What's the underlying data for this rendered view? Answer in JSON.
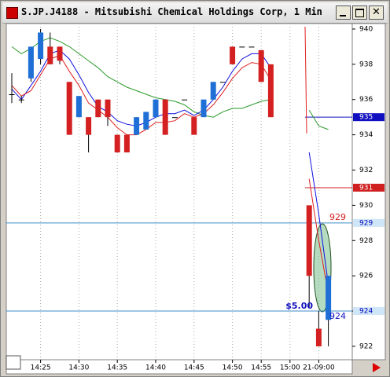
{
  "chart_data": {
    "type": "candlestick",
    "title": "S.JP.J4188 - Mitsubishi Chemical Holdings Corp, 1 Min",
    "categories": [
      null,
      null,
      null,
      "14:25",
      null,
      null,
      null,
      "14:30",
      null,
      null,
      null,
      "14:35",
      null,
      null,
      null,
      "14:40",
      null,
      null,
      null,
      "14:45",
      null,
      null,
      null,
      "14:50",
      null,
      null,
      "14:55",
      null,
      null,
      "15:00",
      null,
      null,
      "21-09:00",
      null
    ],
    "open": [
      936.3,
      936,
      937.2,
      938.3,
      939,
      939,
      937,
      935,
      935,
      936,
      936,
      934,
      934,
      934,
      934.3,
      935,
      936,
      935,
      936,
      935,
      935,
      936,
      937,
      939,
      939,
      939,
      938.8,
      938,
      null,
      null,
      null,
      930,
      923,
      923.5
    ],
    "high": [
      937.5,
      936.2,
      939,
      940,
      939.8,
      939,
      937,
      936.2,
      935,
      936,
      936,
      934,
      934,
      935,
      935.3,
      936,
      936,
      935,
      936,
      935,
      936,
      937,
      937,
      939,
      939,
      939,
      938.8,
      938,
      null,
      null,
      null,
      930,
      924,
      926
    ],
    "low": [
      935.8,
      935.8,
      937,
      938,
      938,
      938,
      934,
      935,
      933,
      935,
      934.5,
      933,
      933,
      934,
      934.3,
      935,
      934,
      935,
      936,
      934,
      935,
      936,
      937,
      938,
      939,
      939,
      937,
      935,
      null,
      null,
      null,
      924.2,
      922,
      922
    ],
    "close": [
      936.3,
      936,
      939,
      939.8,
      938,
      938.2,
      934,
      936.2,
      934,
      935,
      935,
      933,
      933,
      935,
      935.3,
      936,
      934,
      935,
      936,
      934,
      936,
      937,
      937,
      938,
      939,
      939,
      937,
      935,
      null,
      null,
      null,
      926,
      922,
      926
    ],
    "up_color": "#1f6fd6",
    "down_color": "#d42020",
    "moving_averages": [
      {
        "color": "#2a9a2a",
        "values": [
          939,
          938.6,
          938.9,
          939.3,
          939.5,
          939.3,
          939,
          938.6,
          938.2,
          937.8,
          937.3,
          937,
          936.7,
          936.5,
          936.3,
          936.1,
          936,
          935.9,
          935.7,
          935.3,
          935.1,
          935,
          935.3,
          935.5,
          935.5,
          935.7,
          935.9,
          936,
          null,
          null,
          null,
          935.4,
          934.5,
          934.3
        ]
      },
      {
        "color": "#1010e0",
        "values": [
          936.6,
          936,
          936.8,
          937.6,
          938.6,
          938.8,
          938.3,
          937.4,
          936.4,
          935.6,
          935.3,
          934.8,
          934.6,
          934.5,
          934.7,
          935,
          935.2,
          935.2,
          935.4,
          935.1,
          935.4,
          936,
          936.7,
          937.6,
          938.3,
          938.6,
          938.6,
          937.8,
          null,
          null,
          null,
          933,
          929.5,
          925.5
        ]
      },
      {
        "color": "#e02020",
        "values": [
          936.8,
          936.2,
          936.5,
          937.4,
          938.3,
          938.5,
          937.6,
          936.8,
          935.8,
          935.4,
          935,
          934.4,
          934,
          934,
          934.3,
          934.7,
          934.7,
          934.8,
          935.2,
          935,
          935.2,
          935.7,
          936.4,
          937.2,
          937.8,
          938.1,
          938,
          937.1,
          null,
          null,
          null,
          931.5,
          928,
          925
        ]
      }
    ],
    "price_lines": [
      {
        "value": 935,
        "color": "#1010c0",
        "label_color": "#ffffff",
        "full_width": false
      },
      {
        "value": 931,
        "color": "#d02020",
        "label_color": "#ffffff",
        "full_width": false
      },
      {
        "value": 929,
        "color": "#3c8cc8",
        "label_color": "#0000c0",
        "full_width": true
      },
      {
        "value": 924,
        "color": "#3c8cc8",
        "label_color": "#0000c0",
        "full_width": true
      }
    ],
    "annotations": [
      {
        "text": "929",
        "price": 929,
        "color": "#d02020"
      },
      {
        "text": "924",
        "price": 924,
        "color": "#1010c0"
      },
      {
        "text": "$5.00",
        "price": 924,
        "color": "#1010c0"
      }
    ],
    "ylim": [
      921.24,
      940.31
    ],
    "yticks": [
      922,
      924,
      926,
      928,
      930,
      932,
      934,
      936,
      938,
      940
    ],
    "grid": true
  }
}
